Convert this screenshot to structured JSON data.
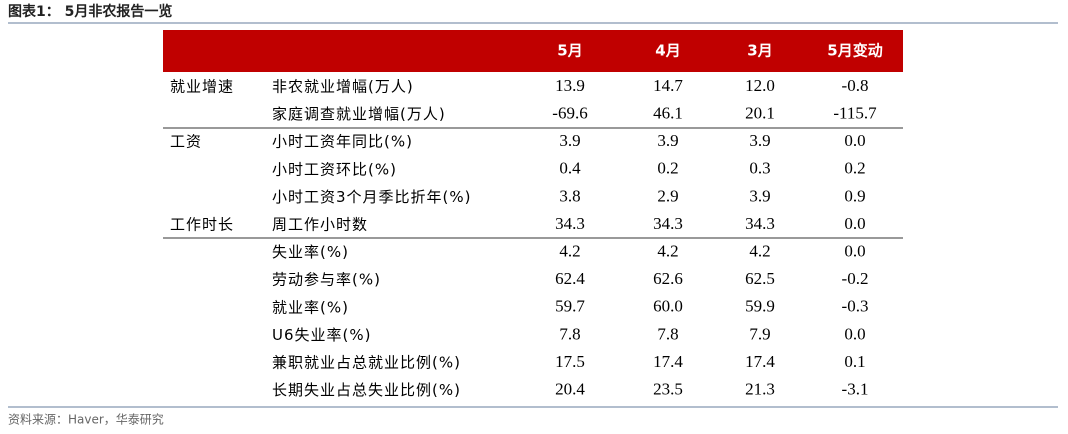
{
  "header": {
    "title": "图表1： 5月非农报告一览"
  },
  "table": {
    "columns": [
      "5月",
      "4月",
      "3月",
      "5月变动"
    ],
    "rows": [
      {
        "group": "就业增速",
        "label": "非农就业增幅(万人)",
        "values": [
          "13.9",
          "14.7",
          "12.0",
          "-0.8"
        ]
      },
      {
        "label": "家庭调查就业增幅(万人)",
        "values": [
          "-69.6",
          "46.1",
          "20.1",
          "-115.7"
        ]
      },
      {
        "group": "工资",
        "label": "小时工资年同比(%)",
        "values": [
          "3.9",
          "3.9",
          "3.9",
          "0.0"
        ]
      },
      {
        "label": "小时工资环比(%)",
        "values": [
          "0.4",
          "0.2",
          "0.3",
          "0.2"
        ]
      },
      {
        "label": "小时工资3个月季比折年(%)",
        "values": [
          "3.8",
          "2.9",
          "3.9",
          "0.9"
        ]
      },
      {
        "group": "工作时长",
        "label": "周工作小时数",
        "values": [
          "34.3",
          "34.3",
          "34.3",
          "0.0"
        ]
      },
      {
        "label": "失业率(%)",
        "values": [
          "4.2",
          "4.2",
          "4.2",
          "0.0"
        ]
      },
      {
        "label": "劳动参与率(%)",
        "values": [
          "62.4",
          "62.6",
          "62.5",
          "-0.2"
        ]
      },
      {
        "label": "就业率(%)",
        "values": [
          "59.7",
          "60.0",
          "59.9",
          "-0.3"
        ]
      },
      {
        "label": "U6失业率(%)",
        "values": [
          "7.8",
          "7.8",
          "7.9",
          "0.0"
        ]
      },
      {
        "label": "兼职就业占总就业比例(%)",
        "values": [
          "17.5",
          "17.4",
          "17.4",
          "0.1"
        ]
      },
      {
        "label": "长期失业占总失业比例(%)",
        "values": [
          "20.4",
          "23.5",
          "21.3",
          "-3.1"
        ]
      }
    ]
  },
  "footer": {
    "source": "资料来源：Haver，华泰研究"
  }
}
